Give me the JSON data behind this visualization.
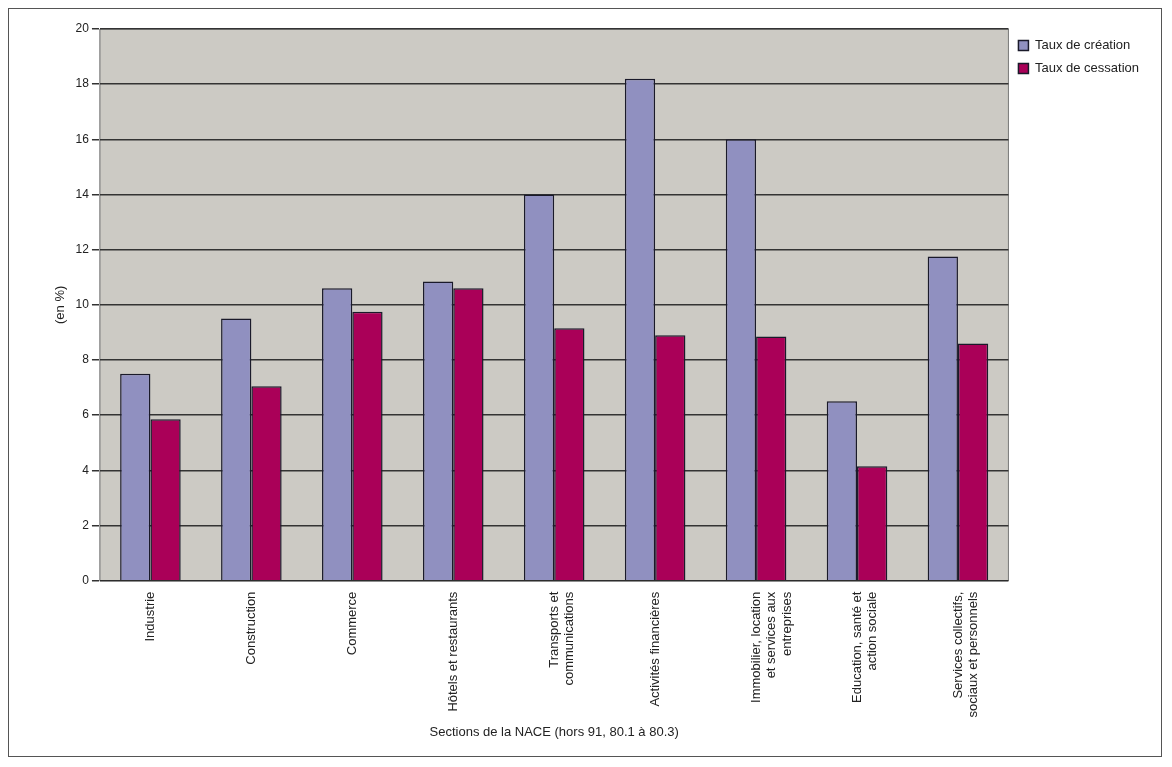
{
  "chart_data": {
    "type": "bar",
    "ylabel": "(en %)",
    "xlabel": "Sections de la NACE (hors 91, 80.1 à 80.3)",
    "categories": [
      "Industrie",
      "Construction",
      "Commerce",
      "Hôtels et restaurants",
      "Transports et communications",
      "Activités financières",
      "Immobilier, location et services aux entreprises",
      "Education, santé et action sociale",
      "Services collectifs, sociaux et personnels"
    ],
    "series": [
      {
        "name": "Taux de création",
        "color": "#9090c0",
        "values": [
          7.5,
          9.5,
          10.6,
          10.85,
          14.0,
          18.2,
          16.0,
          6.5,
          11.75
        ]
      },
      {
        "name": "Taux de cessation",
        "color": "#aa0058",
        "values": [
          5.85,
          7.05,
          9.75,
          10.6,
          9.15,
          8.9,
          8.85,
          4.15,
          8.6
        ]
      }
    ],
    "ylim": [
      0,
      20
    ],
    "yticks": [
      0,
      2,
      4,
      6,
      8,
      10,
      12,
      14,
      16,
      18,
      20
    ],
    "grid": "y",
    "legend": "right"
  }
}
